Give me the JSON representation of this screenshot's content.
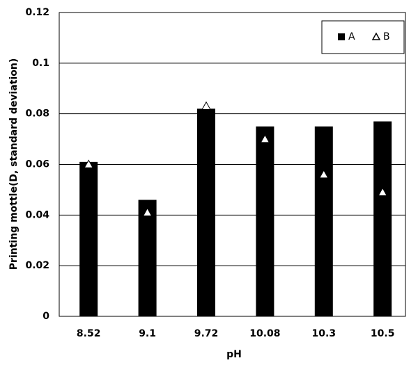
{
  "chart_data": {
    "type": "bar",
    "x_label": "pH",
    "y_label": "Printing mottle(D, standard deviation)",
    "categories": [
      "8.52",
      "9.1",
      "9.72",
      "10.08",
      "10.3",
      "10.5"
    ],
    "series": [
      {
        "name": "A",
        "type": "bar",
        "color": "#000000",
        "values": [
          0.061,
          0.046,
          0.082,
          0.075,
          0.075,
          0.077
        ]
      },
      {
        "name": "B",
        "type": "scatter",
        "marker": "triangle",
        "color": "#ffffff",
        "values": [
          0.06,
          0.041,
          0.083,
          0.07,
          0.056,
          0.049
        ]
      }
    ],
    "ylim": [
      0,
      0.12
    ],
    "yticks": [
      0,
      0.02,
      0.04,
      0.06,
      0.08,
      0.1,
      0.12
    ],
    "grid": true,
    "legend": "upper right"
  }
}
